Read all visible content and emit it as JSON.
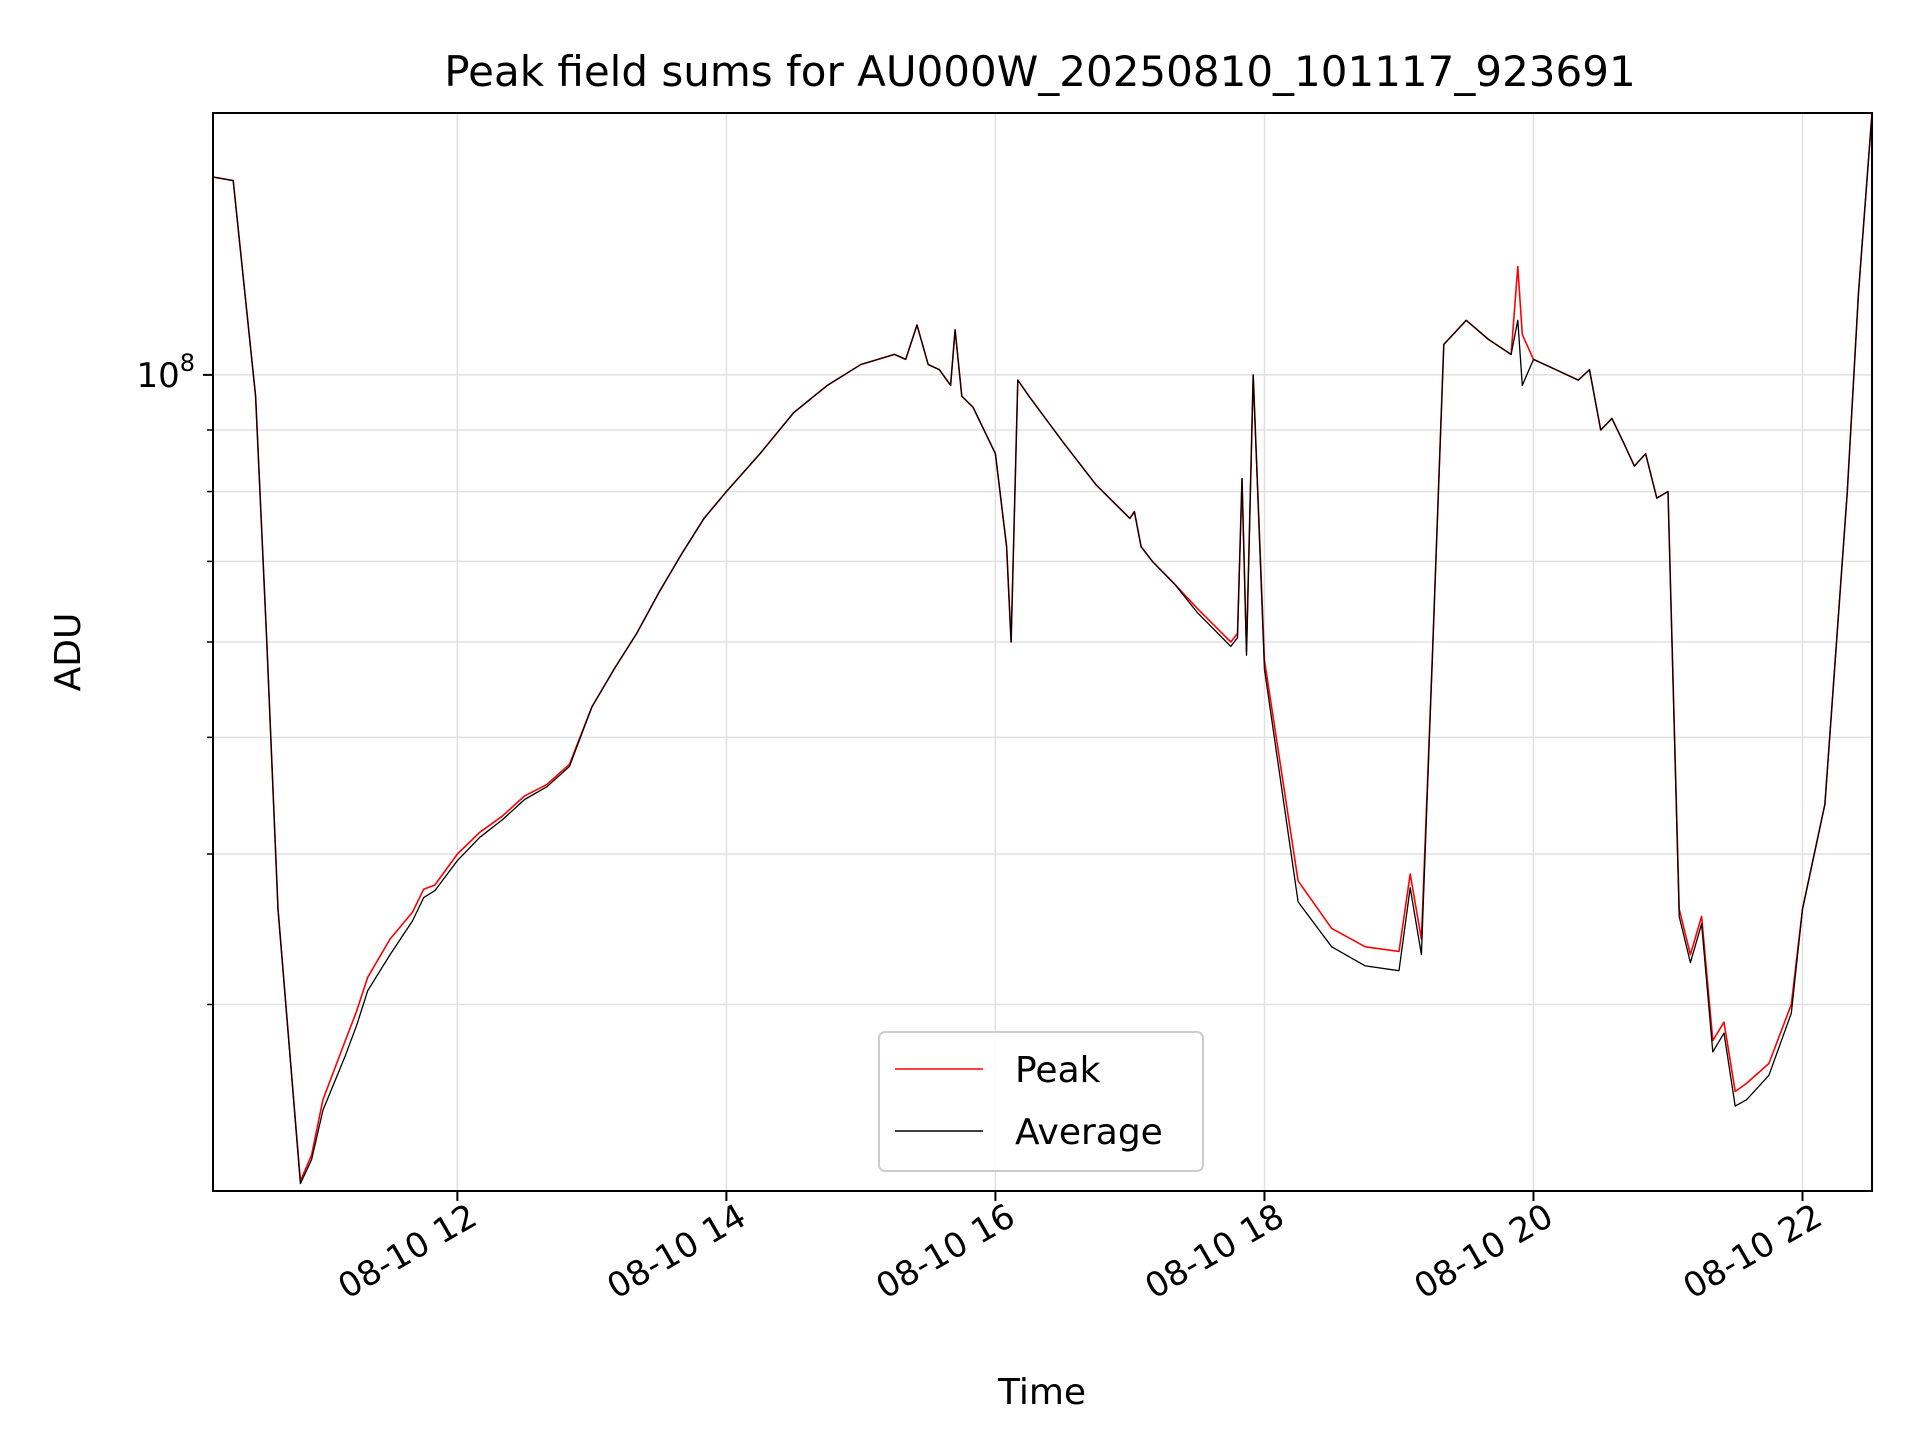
{
  "chart_data": {
    "type": "line",
    "title": "Peak field sums for AU000W_20250810_101117_923691",
    "xlabel": "Time",
    "ylabel": "ADU",
    "yscale": "log",
    "xlim": [
      "2025-08-10 10:11",
      "2025-08-10 22:31"
    ],
    "ylim": [
      21000000,
      165000000
    ],
    "x_ticks": [
      "08-10 12",
      "08-10 14",
      "08-10 16",
      "08-10 18",
      "08-10 20",
      "08-10 22"
    ],
    "y_ticks": [
      {
        "label": "10",
        "exp": "8",
        "value": 100000000
      }
    ],
    "grid": true,
    "legend": {
      "placement": "lower-center"
    },
    "x": [
      "10:11",
      "10:20",
      "10:30",
      "10:35",
      "10:40",
      "10:50",
      "10:55",
      "11:00",
      "11:10",
      "11:15",
      "11:20",
      "11:30",
      "11:40",
      "11:45",
      "11:50",
      "12:00",
      "12:10",
      "12:20",
      "12:30",
      "12:40",
      "12:50",
      "13:00",
      "13:10",
      "13:20",
      "13:30",
      "13:40",
      "13:50",
      "14:00",
      "14:15",
      "14:30",
      "14:45",
      "15:00",
      "15:15",
      "15:20",
      "15:25",
      "15:30",
      "15:35",
      "15:40",
      "15:42",
      "15:45",
      "15:50",
      "16:00",
      "16:05",
      "16:07",
      "16:10",
      "16:15",
      "16:30",
      "16:45",
      "17:00",
      "17:02",
      "17:05",
      "17:10",
      "17:20",
      "17:30",
      "17:45",
      "17:48",
      "17:50",
      "17:52",
      "17:55",
      "18:00",
      "18:15",
      "18:30",
      "18:45",
      "19:00",
      "19:05",
      "19:10",
      "19:15",
      "19:20",
      "19:30",
      "19:40",
      "19:50",
      "19:53",
      "19:55",
      "20:00",
      "20:10",
      "20:20",
      "20:25",
      "20:30",
      "20:35",
      "20:40",
      "20:45",
      "20:50",
      "20:55",
      "21:00",
      "21:05",
      "21:10",
      "21:15",
      "21:20",
      "21:25",
      "21:30",
      "21:35",
      "21:45",
      "21:55",
      "22:00",
      "22:10",
      "22:20",
      "22:25",
      "22:31"
    ],
    "series": [
      {
        "name": "Peak",
        "color": "#ff0000",
        "values": [
          146000000,
          145000000,
          96000000,
          60000000,
          36000000,
          21400000,
          22500000,
          25000000,
          28000000,
          29600000,
          31600000,
          34000000,
          35800000,
          37400000,
          37700000,
          40000000,
          41700000,
          43000000,
          44700000,
          45700000,
          47500000,
          53000000,
          57000000,
          61000000,
          66000000,
          71000000,
          76000000,
          80000000,
          86000000,
          93000000,
          98000000,
          102000000,
          104000000,
          103000000,
          110000000,
          102000000,
          101000000,
          98000000,
          109000000,
          96000000,
          94000000,
          86000000,
          72000000,
          60000000,
          99000000,
          96000000,
          88000000,
          81000000,
          76000000,
          77000000,
          72000000,
          70000000,
          67000000,
          64000000,
          60000000,
          61000000,
          82000000,
          59000000,
          100000000,
          58000000,
          38000000,
          34700000,
          33500000,
          33200000,
          38500000,
          34000000,
          59000000,
          106000000,
          111000000,
          107000000,
          104000000,
          123000000,
          108000000,
          103000000,
          101000000,
          99000000,
          101000000,
          90000000,
          92000000,
          88000000,
          84000000,
          86000000,
          79000000,
          80000000,
          36000000,
          33000000,
          35500000,
          28000000,
          29000000,
          25400000,
          25800000,
          26800000,
          30000000,
          36000000,
          44000000,
          80000000,
          117000000,
          165000000
        ]
      },
      {
        "name": "Average",
        "color": "#000000",
        "values": [
          146000000,
          145000000,
          96000000,
          60000000,
          36000000,
          21300000,
          22300000,
          24500000,
          27200000,
          28800000,
          30800000,
          33000000,
          35200000,
          36800000,
          37300000,
          39500000,
          41300000,
          42700000,
          44400000,
          45500000,
          47300000,
          53000000,
          57000000,
          61000000,
          66000000,
          71000000,
          76000000,
          80000000,
          86000000,
          93000000,
          98000000,
          102000000,
          104000000,
          103000000,
          110000000,
          102000000,
          101000000,
          98000000,
          109000000,
          96000000,
          94000000,
          86000000,
          72000000,
          60000000,
          99000000,
          96000000,
          88000000,
          81000000,
          76000000,
          77000000,
          72000000,
          70000000,
          67000000,
          63500000,
          59500000,
          60500000,
          82000000,
          58500000,
          100000000,
          57000000,
          36500000,
          33500000,
          32300000,
          32000000,
          37500000,
          33000000,
          59000000,
          106000000,
          111000000,
          107000000,
          104000000,
          111000000,
          98000000,
          103000000,
          101000000,
          99000000,
          101000000,
          90000000,
          92000000,
          88000000,
          84000000,
          86000000,
          79000000,
          80000000,
          35500000,
          32500000,
          35000000,
          27400000,
          28400000,
          24700000,
          25000000,
          26200000,
          29500000,
          36000000,
          44000000,
          80000000,
          117000000,
          165000000
        ]
      }
    ]
  }
}
